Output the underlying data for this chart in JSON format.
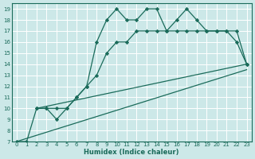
{
  "xlabel": "Humidex (Indice chaleur)",
  "bg_color": "#cce8e8",
  "line_color": "#1a6b5a",
  "grid_color": "#ffffff",
  "xlim": [
    -0.5,
    23.5
  ],
  "ylim": [
    7,
    19.5
  ],
  "xticks": [
    0,
    1,
    2,
    3,
    4,
    5,
    6,
    7,
    8,
    9,
    10,
    11,
    12,
    13,
    14,
    15,
    16,
    17,
    18,
    19,
    20,
    21,
    22,
    23
  ],
  "yticks": [
    7,
    8,
    9,
    10,
    11,
    12,
    13,
    14,
    15,
    16,
    17,
    18,
    19
  ],
  "line1_x": [
    0,
    1,
    2,
    3,
    4,
    5,
    6,
    7,
    8,
    9,
    10,
    11,
    12,
    13,
    14,
    15,
    16,
    17,
    18,
    19,
    20,
    21,
    22,
    23
  ],
  "line1_y": [
    7,
    7,
    10,
    10,
    9,
    10,
    11,
    12,
    16,
    18,
    19,
    18,
    18,
    19,
    19,
    17,
    18,
    19,
    18,
    17,
    17,
    17,
    16,
    14
  ],
  "line2_x": [
    2,
    3,
    4,
    5,
    6,
    7,
    8,
    9,
    10,
    11,
    12,
    13,
    14,
    15,
    16,
    17,
    18,
    19,
    20,
    21,
    22,
    23
  ],
  "line2_y": [
    10,
    10,
    10,
    10,
    11,
    12,
    13,
    15,
    16,
    16,
    17,
    17,
    17,
    17,
    17,
    17,
    17,
    17,
    17,
    17,
    17,
    14
  ],
  "line3_x": [
    2,
    23
  ],
  "line3_y": [
    10,
    14
  ],
  "line4_x": [
    0,
    23
  ],
  "line4_y": [
    7,
    13.5
  ]
}
